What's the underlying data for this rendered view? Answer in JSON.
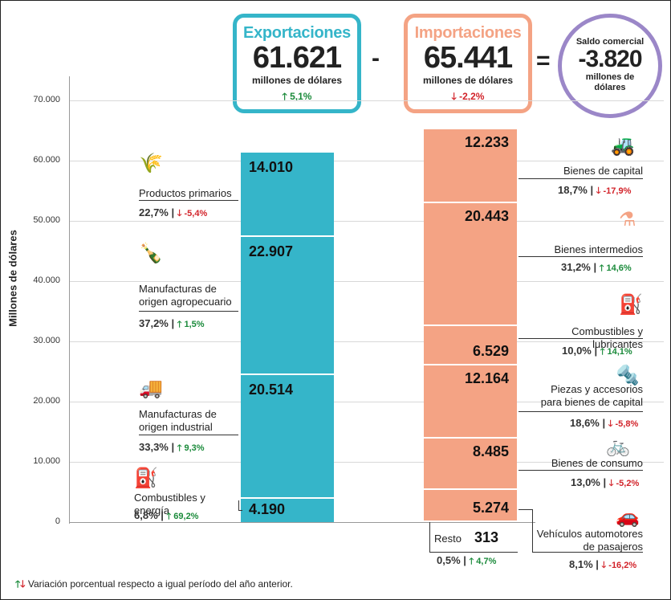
{
  "summary": {
    "exports": {
      "title": "Exportaciones",
      "value": "61.621",
      "unit": "millones de dólares",
      "change": "5,1%",
      "dir": "up"
    },
    "imports": {
      "title": "Importaciones",
      "value": "65.441",
      "unit": "millones de dólares",
      "change": "-2,2%",
      "dir": "down"
    },
    "balance": {
      "title": "Saldo comercial",
      "value": "-3.820",
      "unit": "millones de dólares"
    },
    "minus": "-",
    "equals": "="
  },
  "colors": {
    "exports": "#35b5c9",
    "imports": "#f4a384",
    "exports_border": "#2aa3b8",
    "imports_border": "#f08c6a",
    "balance": "#9b87c8",
    "up": "#1a8a3a",
    "down": "#d2232a"
  },
  "chart_data": {
    "type": "bar",
    "stacked": true,
    "ylabel": "Millones de dólares",
    "ylim": [
      0,
      70000
    ],
    "yticks": [
      "0",
      "10.000",
      "20.000",
      "30.000",
      "40.000",
      "50.000",
      "60.000",
      "70.000"
    ],
    "grid": true,
    "exports": [
      {
        "name": "Combustibles y energía",
        "value": 4190,
        "label": "4.190",
        "share": "6,8%",
        "change": "69,2%",
        "dir": "up",
        "icon": "fuel-barrel-icon"
      },
      {
        "name": "Manufacturas de origen industrial",
        "value": 20514,
        "label": "20.514",
        "share": "33,3%",
        "change": "9,3%",
        "dir": "up",
        "icon": "truck-icon"
      },
      {
        "name": "Manufacturas de origen agropecuario",
        "value": 22907,
        "label": "22.907",
        "share": "37,2%",
        "change": "1,5%",
        "dir": "up",
        "icon": "bottle-icon"
      },
      {
        "name": "Productos primarios",
        "value": 14010,
        "label": "14.010",
        "share": "22,7%",
        "change": "-5,4%",
        "dir": "down",
        "icon": "wheat-icon"
      }
    ],
    "imports": [
      {
        "name": "Resto",
        "value": 313,
        "label": "313",
        "share": "0,5%",
        "change": "4,7%",
        "dir": "up",
        "icon": ""
      },
      {
        "name": "Vehículos automotores de pasajeros",
        "value": 5274,
        "label": "5.274",
        "share": "8,1%",
        "change": "-16,2%",
        "dir": "down",
        "icon": "car-icon"
      },
      {
        "name": "Bienes de consumo",
        "value": 8485,
        "label": "8.485",
        "share": "13,0%",
        "change": "-5,2%",
        "dir": "down",
        "icon": "bicycle-icon"
      },
      {
        "name": "Piezas y accesorios para bienes de capital",
        "value": 12164,
        "label": "12.164",
        "share": "18,6%",
        "change": "-5,8%",
        "dir": "down",
        "icon": "screw-icon"
      },
      {
        "name": "Combustibles y lubricantes",
        "value": 6529,
        "label": "6.529",
        "share": "10,0%",
        "change": "14,1%",
        "dir": "up",
        "icon": "jerrycan-icon"
      },
      {
        "name": "Bienes intermedios",
        "value": 20443,
        "label": "20.443",
        "share": "31,2%",
        "change": "14,6%",
        "dir": "up",
        "icon": "flask-icon"
      },
      {
        "name": "Bienes de capital",
        "value": 12233,
        "label": "12.233",
        "share": "18,7%",
        "change": "-17,9%",
        "dir": "down",
        "icon": "tractor-icon"
      }
    ]
  },
  "footnote": "Variación porcentual respecto a igual período del año anterior."
}
